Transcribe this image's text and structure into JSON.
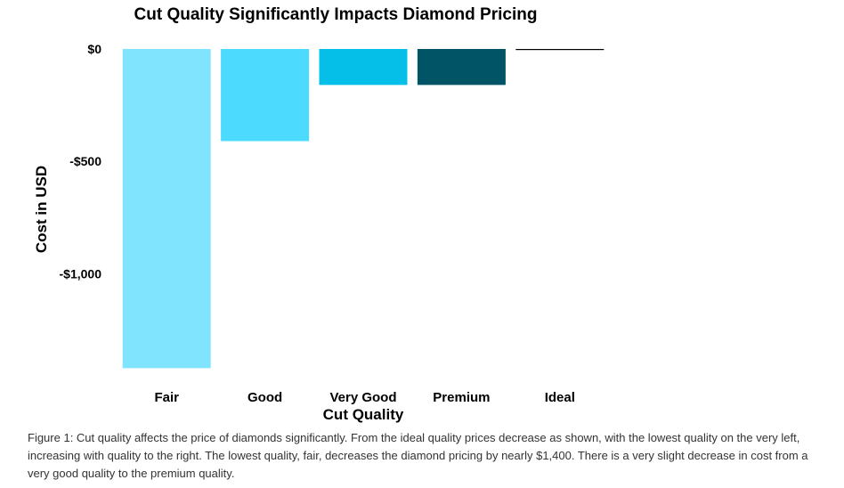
{
  "chart_data": {
    "type": "bar",
    "title": "Cut Quality Significantly Impacts Diamond Pricing",
    "xlabel": "Cut Quality",
    "ylabel": "Cost in USD",
    "categories": [
      "Fair",
      "Good",
      "Very Good",
      "Premium",
      "Ideal"
    ],
    "values": [
      -1420,
      -410,
      -160,
      -160,
      0
    ],
    "colors": [
      "#80E4FF",
      "#4CDBFF",
      "#05BFE8",
      "#005466",
      "#000000"
    ],
    "ylim": [
      -1420,
      0
    ],
    "yticks": [
      {
        "value": 0,
        "label": "$0"
      },
      {
        "value": -500,
        "label": "-$500"
      },
      {
        "value": -1000,
        "label": "-$1,000"
      }
    ],
    "grid": false,
    "legend": "none"
  },
  "caption": "Figure 1: Cut quality affects the price of diamonds significantly. From the ideal quality prices decrease as shown, with the lowest quality on the very left, increasing with quality to the right. The lowest quality, fair, decreases the diamond pricing by nearly $1,400. There is a very slight decrease in cost from a very good quality to the premium quality."
}
